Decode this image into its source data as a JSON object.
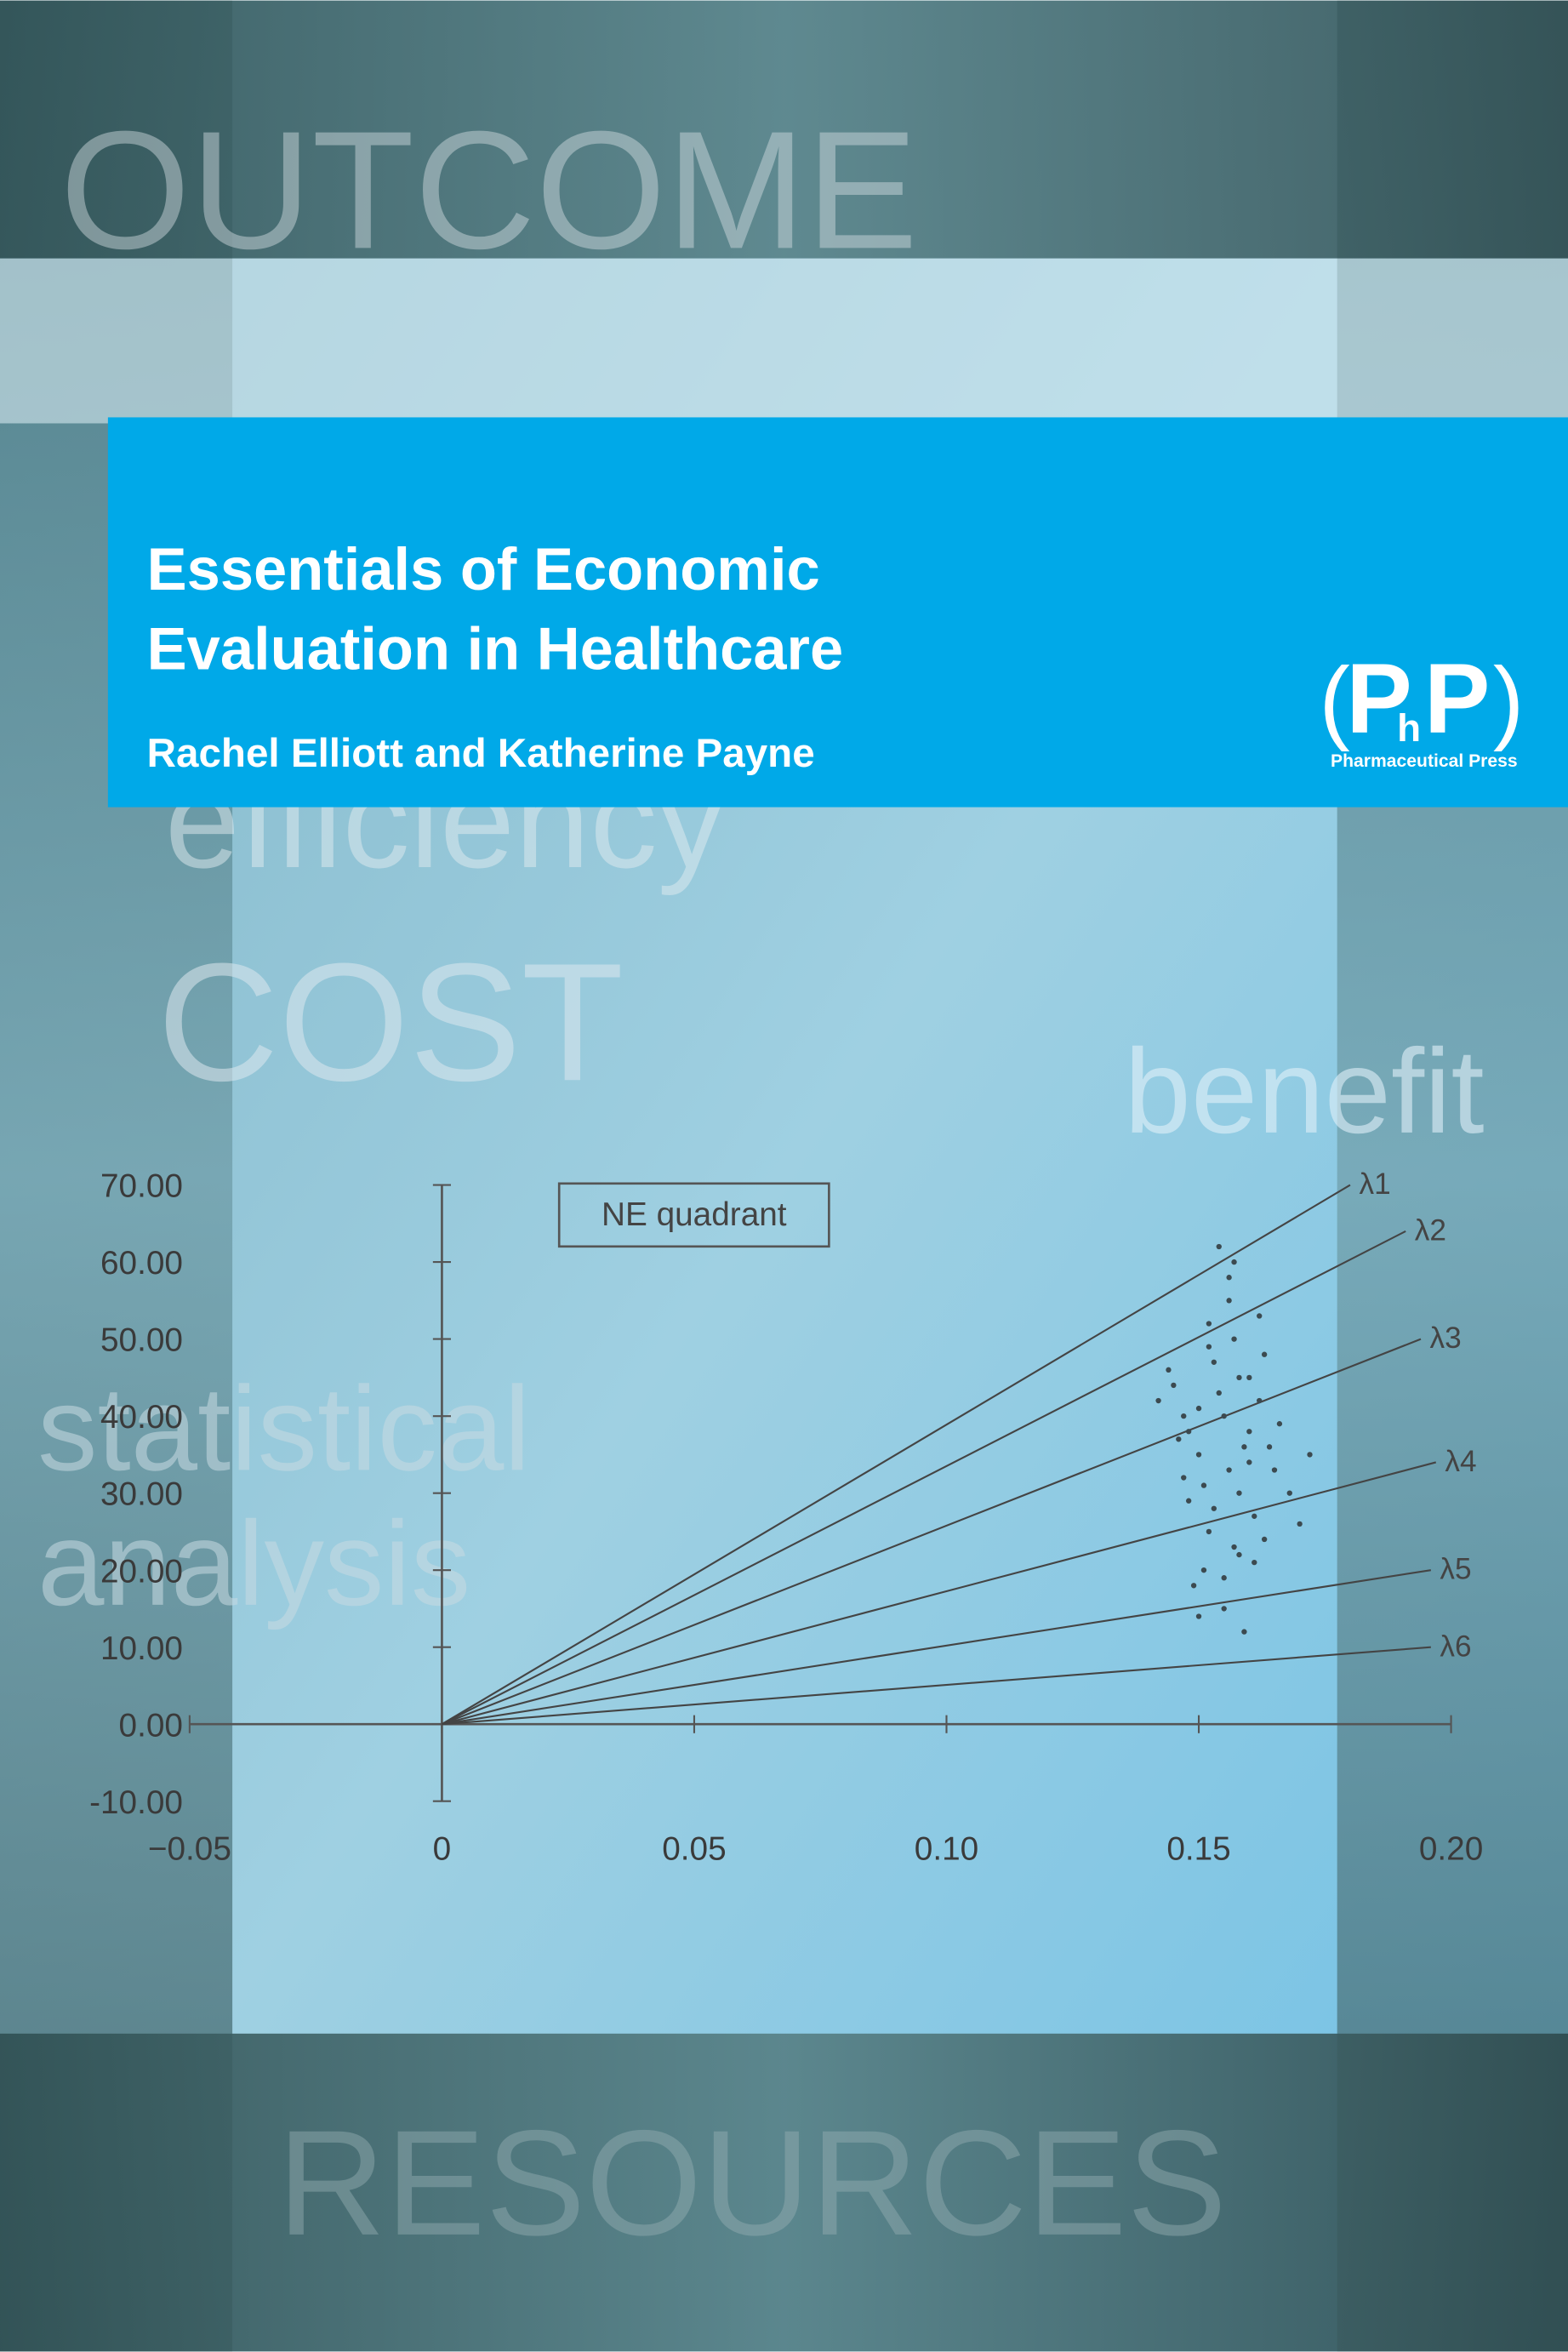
{
  "cover": {
    "background_words": [
      "OUTCOME",
      "efficiency",
      "COST",
      "benefit",
      "statistical",
      "analysis",
      "RESOURCES"
    ],
    "title_lines": [
      "Essentials of Economic",
      "Evaluation in Healthcare"
    ],
    "authors": "Rachel Elliott and Katherine Payne",
    "logo_letters": [
      "P",
      "h",
      "P"
    ],
    "publisher": "Pharmaceutical Press"
  },
  "chart_data": {
    "type": "scatter",
    "annotation": "NE quadrant",
    "xlim": [
      -0.05,
      0.2
    ],
    "ylim": [
      -10,
      70
    ],
    "xticks": [
      {
        "value": -0.05,
        "label": "−0.05"
      },
      0,
      {
        "value": 0.05,
        "label": "0.05"
      },
      {
        "value": 0.1,
        "label": "0.10"
      },
      {
        "value": 0.15,
        "label": "0.15"
      },
      {
        "value": 0.2,
        "label": "0.20"
      }
    ],
    "yticks": [
      {
        "value": -10,
        "label": "-10.00"
      },
      {
        "value": 0,
        "label": "0.00"
      },
      {
        "value": 10,
        "label": "10.00"
      },
      {
        "value": 20,
        "label": "20.00"
      },
      {
        "value": 30,
        "label": "30.00"
      },
      {
        "value": 40,
        "label": "40.00"
      },
      {
        "value": 50,
        "label": "50.00"
      },
      {
        "value": 60,
        "label": "60.00"
      },
      {
        "value": 70,
        "label": "70.00"
      }
    ],
    "lines": [
      {
        "name": "λ1",
        "x": [
          0,
          0.18
        ],
        "y": [
          0,
          70
        ]
      },
      {
        "name": "λ2",
        "x": [
          0,
          0.191
        ],
        "y": [
          0,
          64
        ]
      },
      {
        "name": "λ3",
        "x": [
          0,
          0.194
        ],
        "y": [
          0,
          50
        ]
      },
      {
        "name": "λ4",
        "x": [
          0,
          0.197
        ],
        "y": [
          0,
          34
        ]
      },
      {
        "name": "λ5",
        "x": [
          0,
          0.196
        ],
        "y": [
          0,
          20
        ]
      },
      {
        "name": "λ6",
        "x": [
          0,
          0.196
        ],
        "y": [
          0,
          10
        ]
      }
    ],
    "points": {
      "x": [
        0.155,
        0.15,
        0.16,
        0.158,
        0.152,
        0.148,
        0.162,
        0.165,
        0.145,
        0.157,
        0.153,
        0.159,
        0.151,
        0.163,
        0.147,
        0.156,
        0.161,
        0.154,
        0.149,
        0.166,
        0.144,
        0.158,
        0.152,
        0.16,
        0.155,
        0.15,
        0.157,
        0.163,
        0.146,
        0.168,
        0.153,
        0.159,
        0.156,
        0.142,
        0.17,
        0.151,
        0.162,
        0.155,
        0.148,
        0.158,
        0.164,
        0.152,
        0.157,
        0.16,
        0.15,
        0.154,
        0.172,
        0.147,
        0.161,
        0.156
      ],
      "y": [
        40,
        35,
        45,
        30,
        25,
        38,
        42,
        33,
        44,
        50,
        28,
        36,
        20,
        48,
        32,
        55,
        27,
        43,
        18,
        39,
        46,
        22,
        52,
        34,
        15,
        41,
        60,
        24,
        37,
        30,
        47,
        12,
        58,
        42,
        26,
        31,
        53,
        19,
        29,
        45,
        36,
        49,
        23,
        38,
        14,
        62,
        35,
        40,
        21,
        33
      ]
    }
  }
}
